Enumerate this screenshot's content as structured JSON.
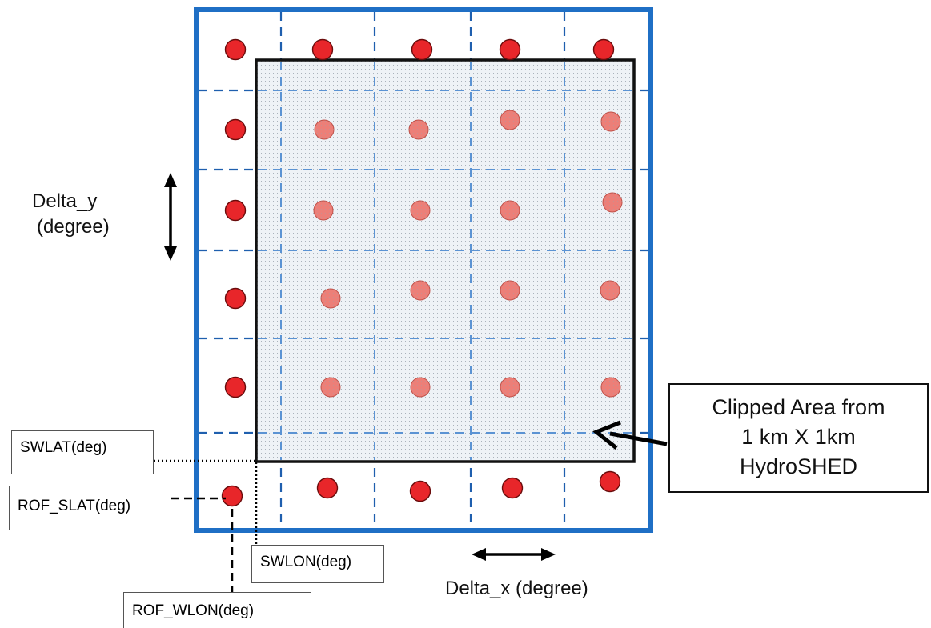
{
  "labels": {
    "delta_y_line1": "Delta_y",
    "delta_y_line2": "(degree)",
    "delta_x": "Delta_x (degree)",
    "clipped_line1": "Clipped Area from",
    "clipped_line2": "1 km X 1km",
    "clipped_line3": "HydroSHED",
    "swlat": "SWLAT(deg)",
    "rof_slat": "ROF_SLAT(deg)",
    "swlon": "SWLON(deg)",
    "rof_wlon": "ROF_WLON(deg)"
  },
  "grid": {
    "columns": 5,
    "rows": 6
  },
  "colors": {
    "outer_border": "#1f6fc5",
    "grid_line": "#1f5fae",
    "grid_line_inside": "#5b93d3",
    "dot": "#e8262a",
    "dot_faded": "#ec7f78",
    "clip_border": "#111111",
    "clip_fill": "#eef2f6"
  }
}
